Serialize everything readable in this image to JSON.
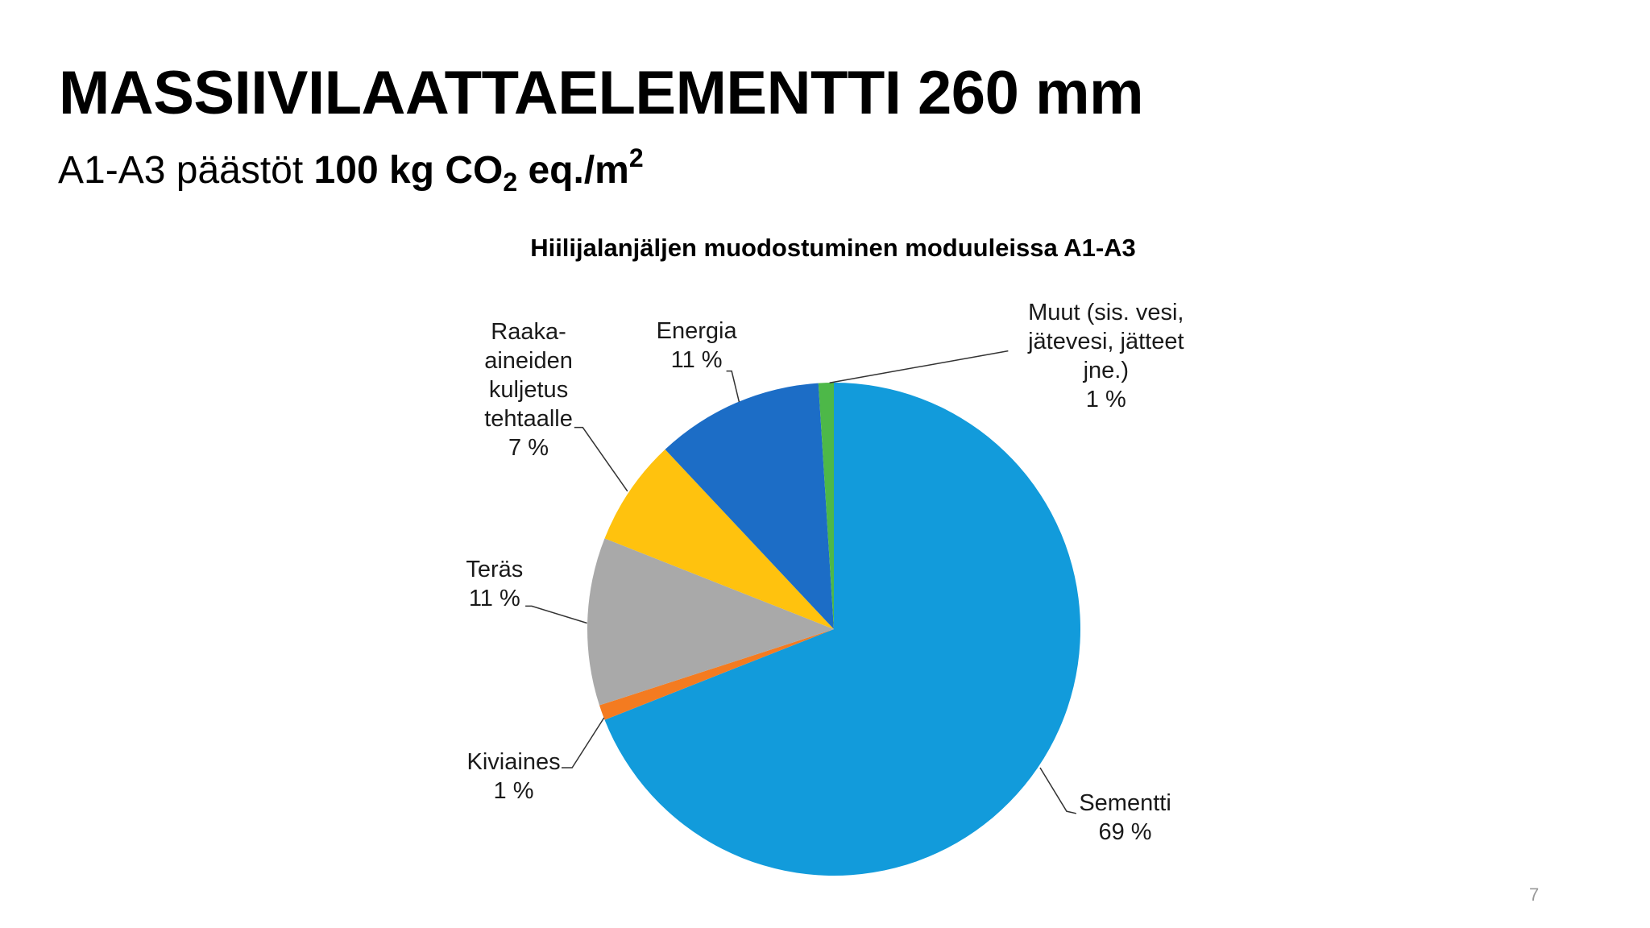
{
  "header": {
    "title": "MASSIIVILAATTAELEMENTTI 260 mm",
    "subtitle": {
      "prefix": "A1-A3 päästöt",
      "amount": "100 kg CO",
      "sub": "2",
      "unit": " eq./m",
      "sup": "2"
    }
  },
  "chart_data": {
    "type": "pie",
    "title": "Hiilijalanjäljen muodostuminen moduuleissa A1-A3",
    "categories": [
      "Sementti",
      "Kiviaines",
      "Teräs",
      "Raaka-\naineiden\nkuljetus\ntehtaalle",
      "Energia",
      "Muut (sis. vesi,\njätevesi, jätteet\njne.)"
    ],
    "values": [
      69,
      1,
      11,
      7,
      11,
      1
    ],
    "value_labels": [
      "69 %",
      "1 %",
      "11 %",
      "7 %",
      "11 %",
      "1 %"
    ],
    "colors": [
      "#129bdb",
      "#f47b20",
      "#a9a9a9",
      "#ffc20e",
      "#1c6dc6",
      "#4db848"
    ]
  },
  "footer": {
    "page": "7"
  }
}
